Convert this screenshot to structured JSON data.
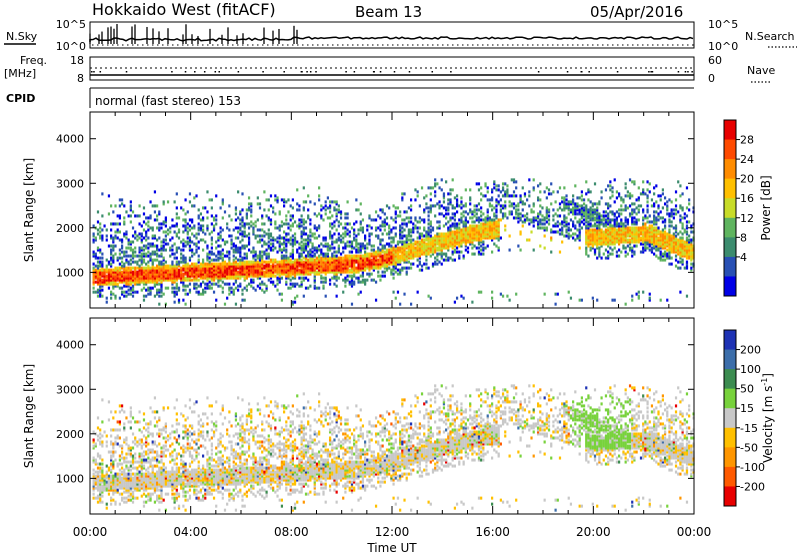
{
  "header": {
    "station": "Hokkaido West (fitACF)",
    "beam": "Beam 13",
    "date": "05/Apr/2016"
  },
  "top_panels": {
    "nsky_label": "N.Sky",
    "nsky_ticks": [
      "10^5",
      "10^0"
    ],
    "nsearch_label": "N.Search",
    "nsearch_ticks": [
      "10^5",
      "10^0"
    ],
    "freq_label_1": "Freq.",
    "freq_label_2": "[MHz]",
    "freq_ticks": [
      "18",
      "8"
    ],
    "nave_label": "Nave",
    "nave_ticks": [
      "60",
      "0"
    ],
    "cpid_label": "CPID",
    "cpid_value": "normal (fast stereo) 153"
  },
  "power_colorbar": {
    "label": "Power [dB]",
    "ticks": [
      "28",
      "24",
      "20",
      "16",
      "12",
      "8",
      "4"
    ],
    "colors": [
      "#e80000",
      "#ff4a00",
      "#ff8c00",
      "#ffc000",
      "#c8dc28",
      "#5fb45f",
      "#3c8c6e",
      "#2850b4",
      "#0000e6"
    ]
  },
  "velocity_colorbar": {
    "label_prefix": "Velocity [m s",
    "label_sup": "-1",
    "label_suffix": "]",
    "ticks": [
      "200",
      "100",
      "50",
      "15",
      "-15",
      "-50",
      "-100",
      "-200"
    ],
    "colors": [
      "#1e32b4",
      "#3c6eaa",
      "#3c8c50",
      "#78d23c",
      "#c8c8c8",
      "#ffc000",
      "#ff9600",
      "#ff5a00",
      "#e80000"
    ]
  },
  "chart_data": [
    {
      "type": "heatmap",
      "name_hint": "power-panel",
      "ylabel": "Slant Range [km]",
      "xlabel": "Time UT",
      "x_ticks": [
        "00:00",
        "04:00",
        "08:00",
        "12:00",
        "16:00",
        "20:00",
        "00:00"
      ],
      "xlim_hours": [
        0,
        24
      ],
      "y_ticks": [
        1000,
        2000,
        3000,
        4000
      ],
      "ylim_km": [
        200,
        4600
      ],
      "z_range_db": [
        0,
        30
      ]
    },
    {
      "type": "heatmap",
      "name_hint": "velocity-panel",
      "ylabel": "Slant Range [km]",
      "xlabel": "Time UT",
      "x_ticks": [
        "00:00",
        "04:00",
        "08:00",
        "12:00",
        "16:00",
        "20:00",
        "00:00"
      ],
      "xlim_hours": [
        0,
        24
      ],
      "y_ticks": [
        1000,
        2000,
        3000,
        4000
      ],
      "ylim_km": [
        200,
        4600
      ],
      "z_range_ms": [
        -250,
        250
      ]
    }
  ]
}
